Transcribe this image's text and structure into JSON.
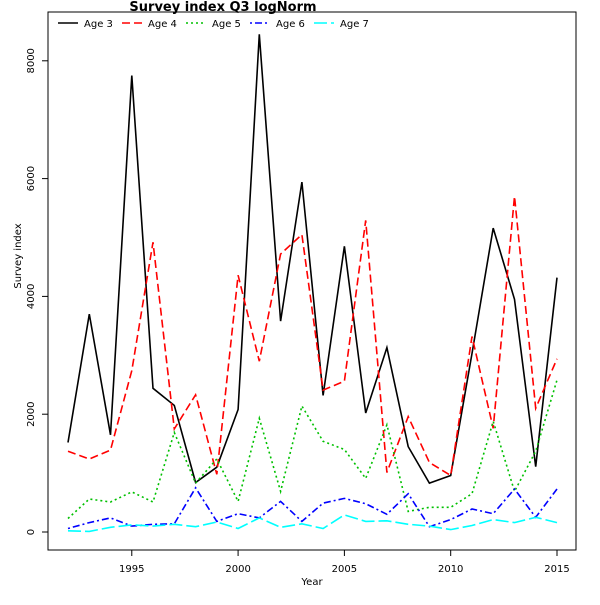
{
  "chart_data": {
    "type": "line",
    "title": "Survey index Q3 logNorm",
    "xlabel": "Year",
    "ylabel": "Survey index",
    "xlim": [
      1992,
      2015
    ],
    "ylim": [
      0,
      8500
    ],
    "x_ticks": [
      1995,
      2000,
      2005,
      2010,
      2015
    ],
    "y_ticks": [
      0,
      2000,
      4000,
      6000,
      8000
    ],
    "grid": false,
    "legend_position": "top",
    "x": [
      1992,
      1993,
      1994,
      1995,
      1996,
      1997,
      1998,
      1999,
      2000,
      2001,
      2002,
      2003,
      2004,
      2005,
      2006,
      2007,
      2008,
      2009,
      2010,
      2011,
      2012,
      2013,
      2014,
      2015
    ],
    "series": [
      {
        "name": "Age 3",
        "color": "#000000",
        "dash": "solid",
        "values": [
          1520,
          3700,
          1650,
          7750,
          2440,
          2150,
          840,
          1100,
          2080,
          8450,
          3580,
          5940,
          2320,
          4850,
          2020,
          3130,
          1450,
          830,
          960,
          3030,
          5160,
          3950,
          1110,
          4320
        ]
      },
      {
        "name": "Age 4",
        "color": "#ff0000",
        "dash": "dashed",
        "values": [
          1370,
          1240,
          1390,
          2740,
          4920,
          1750,
          2330,
          980,
          4360,
          2900,
          4720,
          5050,
          2410,
          2560,
          5290,
          1010,
          1960,
          1180,
          960,
          3320,
          1760,
          5700,
          2100,
          2940
        ]
      },
      {
        "name": "Age 5",
        "color": "#00c000",
        "dash": "dotted",
        "values": [
          230,
          560,
          510,
          680,
          510,
          1690,
          830,
          1240,
          520,
          1930,
          690,
          2140,
          1540,
          1400,
          910,
          1820,
          350,
          420,
          420,
          650,
          1880,
          690,
          1370,
          2580
        ]
      },
      {
        "name": "Age 6",
        "color": "#0000ff",
        "dash": "dotdash",
        "values": [
          60,
          160,
          240,
          100,
          130,
          140,
          750,
          180,
          310,
          240,
          520,
          180,
          490,
          570,
          480,
          300,
          650,
          90,
          210,
          390,
          310,
          730,
          250,
          730
        ]
      },
      {
        "name": "Age 7",
        "color": "#00ffff",
        "dash": "longdash",
        "values": [
          20,
          10,
          80,
          120,
          100,
          130,
          90,
          170,
          60,
          240,
          80,
          140,
          60,
          290,
          180,
          190,
          130,
          100,
          40,
          110,
          210,
          160,
          250,
          160
        ]
      }
    ]
  }
}
